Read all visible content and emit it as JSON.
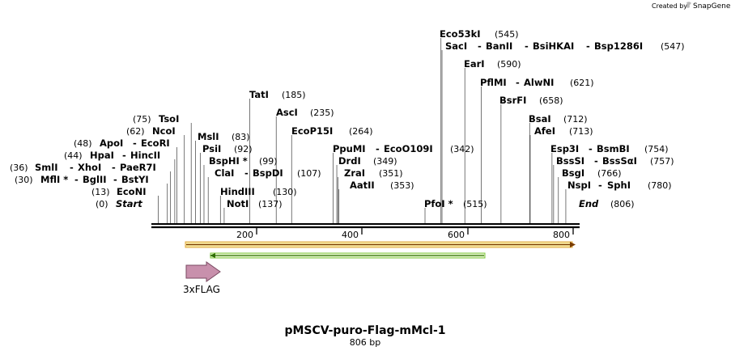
{
  "branding": {
    "created_by": "Created by",
    "product": "SnapGene"
  },
  "map": {
    "title": "pMSCV-puro-Flag-mMcl-1",
    "length_label": "806 bp",
    "total_bp": 806,
    "ruler_ticks": [
      "200",
      "400",
      "600",
      "800"
    ],
    "ends": {
      "start": {
        "label": "Start",
        "pos": "(0)"
      },
      "end": {
        "label": "End",
        "pos": "(806)"
      }
    },
    "feature": {
      "name": "3xFLAG",
      "color": "#c890ac"
    },
    "arrows": {
      "orange": {
        "color": "#e0a840",
        "direction": "forward"
      },
      "green": {
        "color": "#7cc43c",
        "direction": "reverse"
      }
    }
  },
  "sites": [
    {
      "id": "econi",
      "names": [
        "EcoNI"
      ],
      "pos": "(13)",
      "bp": 13
    },
    {
      "id": "mfli",
      "names": [
        "MflI *",
        "BglII",
        "BstYI"
      ],
      "pos": "(30)",
      "bp": 30
    },
    {
      "id": "smli",
      "names": [
        "SmlI",
        "XhoI",
        "PaeR7I"
      ],
      "pos": "(36)",
      "bp": 36
    },
    {
      "id": "hpai",
      "names": [
        "HpaI",
        "HincII"
      ],
      "pos": "(44)",
      "bp": 44
    },
    {
      "id": "apoi",
      "names": [
        "ApoI",
        "EcoRI"
      ],
      "pos": "(48)",
      "bp": 48
    },
    {
      "id": "ncoi",
      "names": [
        "NcoI"
      ],
      "pos": "(62)",
      "bp": 62
    },
    {
      "id": "tsoi",
      "names": [
        "TsoI"
      ],
      "pos": "(75)",
      "bp": 75
    },
    {
      "id": "msli",
      "names": [
        "MslI"
      ],
      "pos": "(83)",
      "bp": 83
    },
    {
      "id": "psii",
      "names": [
        "PsiI"
      ],
      "pos": "(92)",
      "bp": 92
    },
    {
      "id": "bsphi",
      "names": [
        "BspHI *"
      ],
      "pos": "(99)",
      "bp": 99
    },
    {
      "id": "clai",
      "names": [
        "ClaI",
        "BspDI"
      ],
      "pos": "(107)",
      "bp": 107
    },
    {
      "id": "hindiii",
      "names": [
        "HindIII"
      ],
      "pos": "(130)",
      "bp": 130
    },
    {
      "id": "noti",
      "names": [
        "NotI"
      ],
      "pos": "(137)",
      "bp": 137
    },
    {
      "id": "tati",
      "names": [
        "TatI"
      ],
      "pos": "(185)",
      "bp": 185
    },
    {
      "id": "asci",
      "names": [
        "AscI"
      ],
      "pos": "(235)",
      "bp": 235
    },
    {
      "id": "ecop15i",
      "names": [
        "EcoP15I"
      ],
      "pos": "(264)",
      "bp": 264
    },
    {
      "id": "ppumi",
      "names": [
        "PpuMI",
        "EcoO109I"
      ],
      "pos": "(342)",
      "bp": 342
    },
    {
      "id": "drdi",
      "names": [
        "DrdI"
      ],
      "pos": "(349)",
      "bp": 349
    },
    {
      "id": "zrai",
      "names": [
        "ZraI"
      ],
      "pos": "(351)",
      "bp": 351
    },
    {
      "id": "aatii",
      "names": [
        "AatII"
      ],
      "pos": "(353)",
      "bp": 353
    },
    {
      "id": "pfoi",
      "names": [
        "PfoI *"
      ],
      "pos": "(515)",
      "bp": 515
    },
    {
      "id": "eco53ki",
      "names": [
        "Eco53kI"
      ],
      "pos": "(545)",
      "bp": 545
    },
    {
      "id": "saci",
      "names": [
        "SacI",
        "BanII",
        "BsiHKAI",
        "Bsp1286I"
      ],
      "pos": "(547)",
      "bp": 547
    },
    {
      "id": "eari",
      "names": [
        "EarI"
      ],
      "pos": "(590)",
      "bp": 590
    },
    {
      "id": "pflmi",
      "names": [
        "PflMI",
        "AlwNI"
      ],
      "pos": "(621)",
      "bp": 621
    },
    {
      "id": "bsrfi",
      "names": [
        "BsrFI"
      ],
      "pos": "(658)",
      "bp": 658
    },
    {
      "id": "bsai",
      "names": [
        "BsaI"
      ],
      "pos": "(712)",
      "bp": 712
    },
    {
      "id": "afei",
      "names": [
        "AfeI"
      ],
      "pos": "(713)",
      "bp": 713
    },
    {
      "id": "esp3i",
      "names": [
        "Esp3I",
        "BsmBI"
      ],
      "pos": "(754)",
      "bp": 754
    },
    {
      "id": "bsssi",
      "names": [
        "BssSI",
        "BssSαI"
      ],
      "pos": "(757)",
      "bp": 757
    },
    {
      "id": "bsgi",
      "names": [
        "BsgI"
      ],
      "pos": "(766)",
      "bp": 766
    },
    {
      "id": "nspi",
      "names": [
        "NspI",
        "SphI"
      ],
      "pos": "(780)",
      "bp": 780
    }
  ]
}
